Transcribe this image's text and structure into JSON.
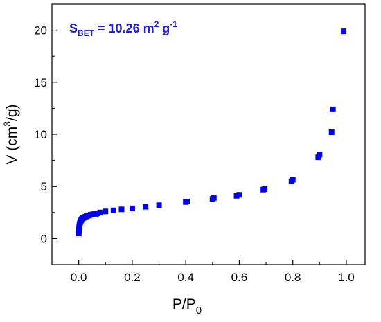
{
  "chart_data": {
    "type": "scatter",
    "xlabel": {
      "main": "P/P",
      "sub": "0"
    },
    "ylabel": {
      "pre": "V (cm",
      "sup": "3",
      "post": "/g)"
    },
    "annotation": {
      "s": "S",
      "sub": "BET",
      "mid": " = 10.26 m",
      "sup1": "2",
      "mid2": " g",
      "sup2": "-1"
    },
    "xlim": [
      -0.1,
      1.07
    ],
    "ylim": [
      -2.5,
      22.5
    ],
    "xticks": [
      0.0,
      0.2,
      0.4,
      0.6,
      0.8,
      1.0
    ],
    "xtick_labels": [
      "0.0",
      "0.2",
      "0.4",
      "0.6",
      "0.8",
      "1.0"
    ],
    "yticks": [
      0,
      5,
      10,
      15,
      20
    ],
    "ytick_labels": [
      "0",
      "5",
      "10",
      "15",
      "20"
    ],
    "marker_color": "#0000ee",
    "series": [
      {
        "x": [
          0.0005,
          0.001,
          0.0015,
          0.002,
          0.003,
          0.004,
          0.005,
          0.006,
          0.008,
          0.01,
          0.012,
          0.015,
          0.018,
          0.022,
          0.026,
          0.03,
          0.035,
          0.04,
          0.045,
          0.05,
          0.055,
          0.06,
          0.065,
          0.07,
          0.08,
          0.1,
          0.13,
          0.16,
          0.2,
          0.25,
          0.3,
          0.4,
          0.405,
          0.5,
          0.505,
          0.59,
          0.6,
          0.69,
          0.695,
          0.795,
          0.8,
          0.895,
          0.9,
          0.945,
          0.95,
          0.99
        ],
        "y": [
          0.5,
          0.8,
          1.0,
          1.15,
          1.3,
          1.42,
          1.52,
          1.6,
          1.7,
          1.8,
          1.87,
          1.95,
          2.0,
          2.05,
          2.1,
          2.15,
          2.2,
          2.24,
          2.28,
          2.3,
          2.33,
          2.36,
          2.38,
          2.42,
          2.5,
          2.6,
          2.7,
          2.8,
          2.9,
          3.05,
          3.2,
          3.5,
          3.55,
          3.8,
          3.9,
          4.1,
          4.2,
          4.7,
          4.75,
          5.5,
          5.65,
          7.8,
          8.05,
          10.2,
          12.4,
          19.9
        ]
      }
    ]
  }
}
